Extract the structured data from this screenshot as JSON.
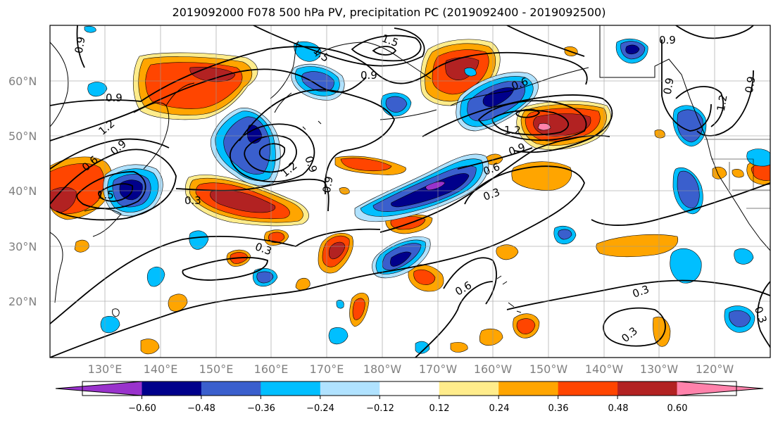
{
  "title": "2019092000 F078 500 hPa PV, precipitation PC (2019092400 - 2019092500)",
  "lat_labels": [
    "60°N",
    "50°N",
    "40°N",
    "30°N",
    "20°N"
  ],
  "lon_labels": [
    "130°E",
    "140°E",
    "150°E",
    "160°E",
    "170°E",
    "180°W",
    "170°W",
    "160°W",
    "150°W",
    "140°W",
    "130°W",
    "120°W"
  ],
  "colorbar": {
    "colors": [
      "#9932CC",
      "#00008B",
      "#3A5FCD",
      "#00BFFF",
      "#B0E2FF",
      "#FFFFFF",
      "#FFEC8B",
      "#FFA500",
      "#FF4500",
      "#B22222",
      "#FF82AB"
    ],
    "tick_labels": [
      "−0.60",
      "−0.48",
      "−0.36",
      "−0.24",
      "−0.12",
      "0.12",
      "0.24",
      "0.36",
      "0.48",
      "0.60"
    ]
  },
  "pv_contour_labels": [
    "0.9",
    "1.5",
    "1.5",
    "0.9",
    "0.9",
    "1.2",
    "0.6",
    "0.9",
    "1.5",
    "0.9",
    "0.6",
    "0.9",
    "1.2",
    "0.9",
    "0.6",
    "0.3",
    "0.9",
    "0.3",
    "1.2",
    "0.3",
    "0.6",
    "0.3",
    "0.3",
    "0.3",
    "1.2",
    "0.9",
    "0.9"
  ]
}
